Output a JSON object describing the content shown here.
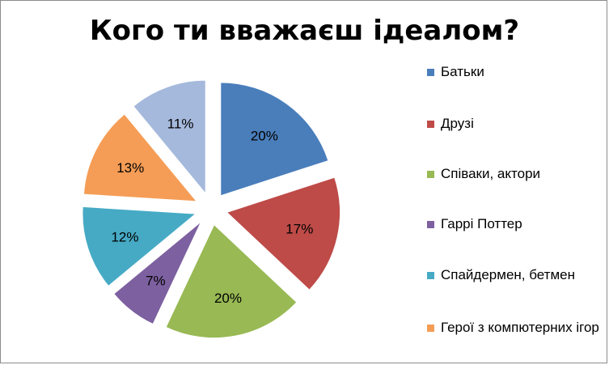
{
  "chart_data": {
    "type": "pie",
    "title": "Кого ти вважаєш ідеалом?",
    "categories": [
      "Батьки",
      "Друзі",
      "Співаки, актори",
      "Гаррі Поттер",
      "Спайдермен, бетмен",
      "Герої з компютерних ігор",
      ""
    ],
    "values": [
      20,
      17,
      20,
      7,
      12,
      13,
      11
    ],
    "labels": [
      "20%",
      "17%",
      "20%",
      "7%",
      "12%",
      "13%",
      "11%"
    ],
    "colors": [
      "#4a7ebb",
      "#be4b48",
      "#98b954",
      "#7d60a0",
      "#46aac5",
      "#f59d56",
      "#a5b9dc"
    ],
    "legend": "right",
    "exploded": true
  },
  "legend": {
    "items": [
      {
        "label": "Батьки",
        "color": "#4a7ebb"
      },
      {
        "label": "Друзі",
        "color": "#be4b48"
      },
      {
        "label": "Співаки, актори",
        "color": "#98b954"
      },
      {
        "label": "Гаррі Поттер",
        "color": "#7d60a0"
      },
      {
        "label": "Спайдермен, бетмен",
        "color": "#46aac5"
      },
      {
        "label": "Герої з компютерних ігор",
        "color": "#f59d56"
      }
    ]
  }
}
